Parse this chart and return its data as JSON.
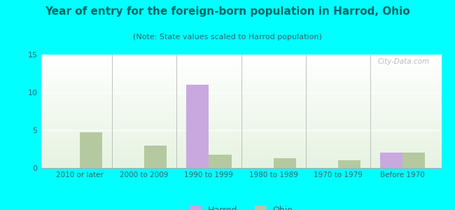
{
  "title": "Year of entry for the foreign-born population in Harrod, Ohio",
  "subtitle": "(Note: State values scaled to Harrod population)",
  "categories": [
    "2010 or later",
    "2000 to 2009",
    "1990 to 1999",
    "1980 to 1989",
    "1970 to 1979",
    "Before 1970"
  ],
  "harrod_values": [
    0,
    0,
    11,
    0,
    0,
    2
  ],
  "ohio_values": [
    4.7,
    3.0,
    1.8,
    1.3,
    1.0,
    2.0
  ],
  "harrod_color": "#c9a8e0",
  "ohio_color": "#b5c9a0",
  "ylim": [
    0,
    15
  ],
  "yticks": [
    0,
    5,
    10,
    15
  ],
  "bg_color": "#00ffff",
  "bar_width": 0.35,
  "title_fontsize": 11,
  "subtitle_fontsize": 8,
  "title_color": "#006666",
  "subtitle_color": "#336666",
  "tick_color": "#336666",
  "watermark": "City-Data.com"
}
